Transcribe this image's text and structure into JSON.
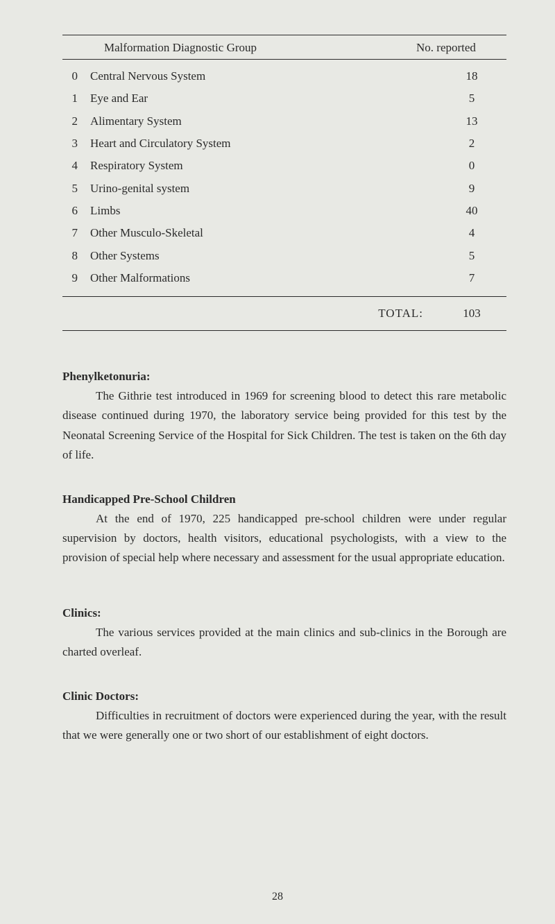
{
  "table": {
    "header": {
      "col2": "Malformation Diagnostic Group",
      "col3": "No. reported"
    },
    "rows": [
      {
        "num": "0",
        "label": "Central Nervous System",
        "value": "18"
      },
      {
        "num": "1",
        "label": "Eye and Ear",
        "value": "5"
      },
      {
        "num": "2",
        "label": "Alimentary System",
        "value": "13"
      },
      {
        "num": "3",
        "label": "Heart and Circulatory System",
        "value": "2"
      },
      {
        "num": "4",
        "label": "Respiratory System",
        "value": "0"
      },
      {
        "num": "5",
        "label": "Urino-genital system",
        "value": "9"
      },
      {
        "num": "6",
        "label": "Limbs",
        "value": "40"
      },
      {
        "num": "7",
        "label": "Other Musculo-Skeletal",
        "value": "4"
      },
      {
        "num": "8",
        "label": "Other Systems",
        "value": "5"
      },
      {
        "num": "9",
        "label": "Other Malformations",
        "value": "7"
      }
    ],
    "total": {
      "label": "TOTAL:",
      "value": "103"
    }
  },
  "sections": {
    "phenylketonuria": {
      "heading": "Phenylketonuria:",
      "body": "The Githrie test introduced in 1969 for screening blood to detect this rare metabolic disease continued during 1970, the laboratory service being provided for this test by the Neonatal Screening Service of the Hospital for Sick Children. The test is taken on the 6th day of life."
    },
    "handicapped": {
      "heading": "Handicapped Pre-School Children",
      "body": "At the end of 1970, 225 handicapped pre-school children were under regular supervision by doctors, health visitors, educational psychologists, with a view to the provision of special help where necessary and assessment for the usual appropriate education."
    },
    "clinics": {
      "heading": "Clinics:",
      "body": "The various services provided at the main clinics and sub-clinics in the Borough are charted overleaf."
    },
    "clinic_doctors": {
      "heading": "Clinic Doctors:",
      "body": "Difficulties in recruitment of doctors were experienced during the year, with the result that we were generally one or two short of our establishment of eight doctors."
    }
  },
  "page_number": "28",
  "styling": {
    "background_color": "#e8e9e4",
    "text_color": "#2a2a2a",
    "body_fontsize": 17,
    "line_height": 1.65,
    "border_color": "#2a2a2a",
    "font_family": "Georgia, Times New Roman, serif"
  }
}
